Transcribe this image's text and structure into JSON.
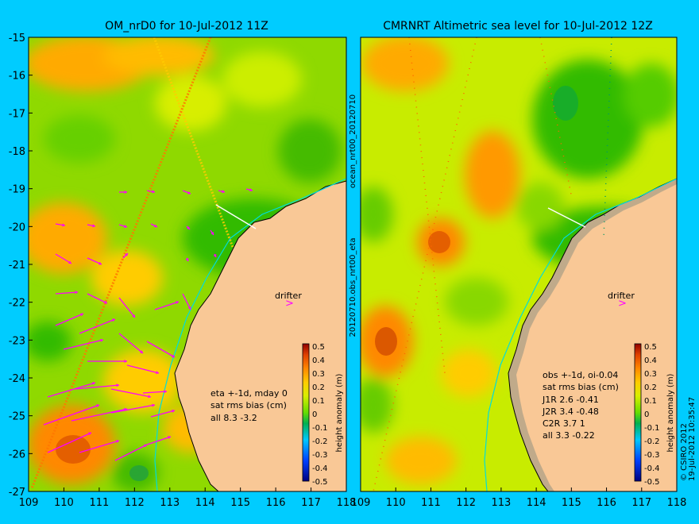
{
  "figure": {
    "background": "#00ccff",
    "land_color": "#f9c896",
    "left_vertical_label": "ocean_nrt00_20120710",
    "middle_vertical_label": "20120710.obs_nrt00_eta",
    "credit": "© CSIRO 2012",
    "timestamp": "19-Jul-2012 10:35:47"
  },
  "chart_data": [
    {
      "type": "heatmap",
      "title": "OM_nrD0 for 10-Jul-2012 11Z",
      "xlim": [
        109,
        118
      ],
      "ylim": [
        -27,
        -15
      ],
      "x_ticks": [
        "109",
        "110",
        "111",
        "112",
        "113",
        "114",
        "115",
        "116",
        "117",
        "118"
      ],
      "y_ticks": [
        "-15",
        "-16",
        "-17",
        "-18",
        "-19",
        "-20",
        "-21",
        "-22",
        "-23",
        "-24",
        "-25",
        "-26",
        "-27"
      ],
      "drifter_label": "drifter",
      "stats_lines": [
        "eta +-1d, mday 0",
        "sat rms bias (cm)",
        "all 8.3 -3.2"
      ],
      "colorbar": {
        "label": "height anomaly (m)",
        "ticks": [
          "0.5",
          "0.4",
          "0.3",
          "0.2",
          "0.1",
          "0",
          "-0.1",
          "-0.2",
          "-0.3",
          "-0.4",
          "-0.5"
        ]
      }
    },
    {
      "type": "heatmap",
      "title": "CMRNRT Altimetric sea level  for 10-Jul-2012 12Z",
      "xlim": [
        109,
        118
      ],
      "ylim": [
        -27,
        -15
      ],
      "x_ticks": [
        "109",
        "110",
        "111",
        "112",
        "113",
        "114",
        "115",
        "116",
        "117",
        "118"
      ],
      "drifter_label": "drifter",
      "stats_lines": [
        "obs +-1d, oi-0.04",
        "sat rms bias (cm)",
        "J1R   2.6 -0.41",
        "J2R   3.4 -0.48",
        "C2R   3.7 1",
        "all 3.3 -0.22"
      ],
      "colorbar": {
        "label": "height anomaly (m)",
        "ticks": [
          "0.5",
          "0.4",
          "0.3",
          "0.2",
          "0.1",
          "0",
          "-0.1",
          "-0.2",
          "-0.3",
          "-0.4",
          "-0.5"
        ]
      }
    }
  ]
}
